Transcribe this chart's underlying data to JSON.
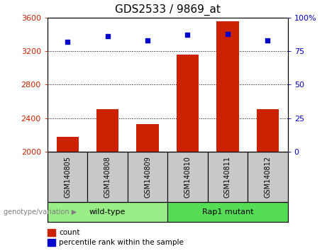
{
  "title": "GDS2533 / 9869_at",
  "samples": [
    "GSM140805",
    "GSM140808",
    "GSM140809",
    "GSM140810",
    "GSM140811",
    "GSM140812"
  ],
  "counts": [
    2175,
    2510,
    2330,
    3160,
    3560,
    2510
  ],
  "percentiles": [
    82,
    86,
    83,
    87,
    88,
    83
  ],
  "ylim_left": [
    2000,
    3600
  ],
  "ylim_right": [
    0,
    100
  ],
  "yticks_left": [
    2000,
    2400,
    2800,
    3200,
    3600
  ],
  "yticks_right": [
    0,
    25,
    50,
    75,
    100
  ],
  "bar_color": "#cc2200",
  "dot_color": "#0000cc",
  "bg_label_area": "#c8c8c8",
  "groups": [
    {
      "label": "wild-type",
      "samples": [
        0,
        1,
        2
      ],
      "color": "#99ee88"
    },
    {
      "label": "Rap1 mutant",
      "samples": [
        3,
        4,
        5
      ],
      "color": "#55dd55"
    }
  ],
  "group_label": "genotype/variation",
  "legend_count": "count",
  "legend_percentile": "percentile rank within the sample",
  "title_fontsize": 11,
  "tick_fontsize": 8,
  "sample_fontsize": 7
}
